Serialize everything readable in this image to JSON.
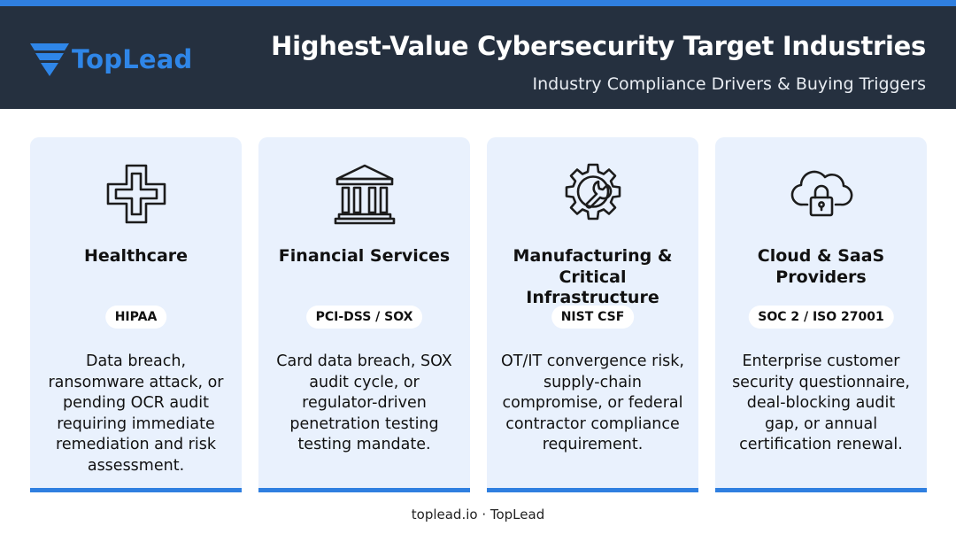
{
  "header": {
    "logo_text": "TopLead",
    "title": "Highest-Value Cybersecurity Target Industries",
    "subtitle": "Industry Compliance Drivers & Buying Triggers"
  },
  "cards": [
    {
      "icon": "medical-cross-icon",
      "title": "Healthcare",
      "badge": "HIPAA",
      "description": "Data breach, ransomware attack, or pending OCR audit requiring immediate remediation and risk assessment."
    },
    {
      "icon": "bank-building-icon",
      "title": "Financial Services",
      "badge": "PCI-DSS / SOX",
      "description": "Card data breach, SOX audit cycle, or regulator-driven penetration testing testing mandate."
    },
    {
      "icon": "gear-wrench-icon",
      "title": "Manufacturing & Critical Infrastructure",
      "badge": "NIST CSF",
      "description": "OT/IT convergence risk, supply-chain compromise, or federal contractor compliance requirement."
    },
    {
      "icon": "cloud-lock-icon",
      "title": "Cloud & SaaS Providers",
      "badge": "SOC 2 / ISO 27001",
      "description": "Enterprise customer security questionnaire, deal-blocking audit gap, or annual certification renewal."
    }
  ],
  "footer": {
    "text": "toplead.io · TopLead"
  },
  "colors": {
    "accent": "#2f7fe0",
    "header_bg": "#25303f",
    "card_bg": "#e9f1fd",
    "logo": "#2f86e8"
  }
}
